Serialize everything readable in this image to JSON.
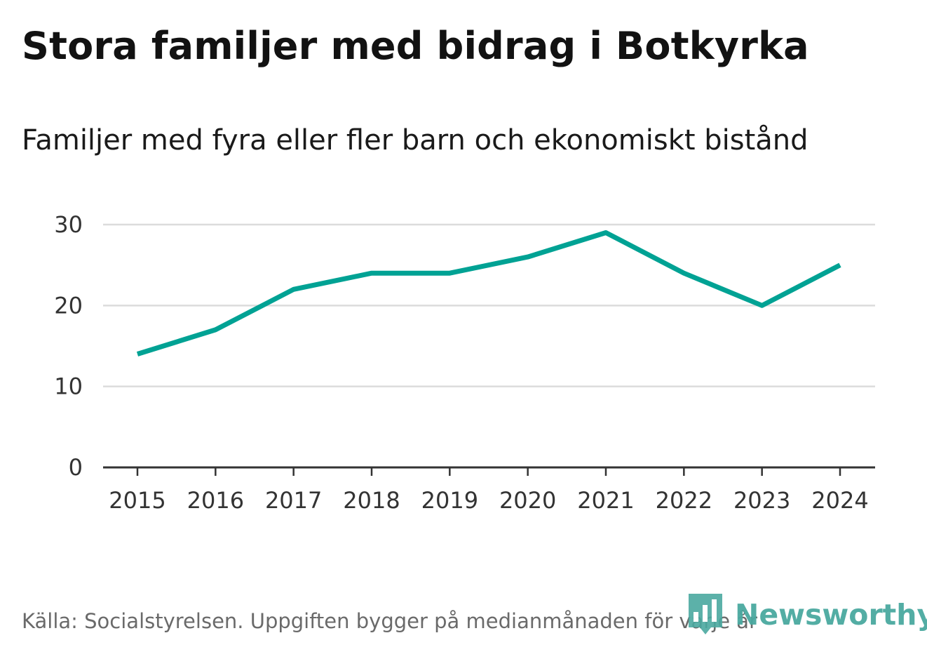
{
  "chart_data": {
    "type": "line",
    "title": "Stora familjer med bidrag i Botkyrka",
    "subtitle": "Familjer med fyra eller fler barn och ekonomiskt bistånd",
    "categories": [
      "2015",
      "2016",
      "2017",
      "2018",
      "2019",
      "2020",
      "2021",
      "2022",
      "2023",
      "2024"
    ],
    "series": [
      {
        "values": [
          14,
          17,
          22,
          24,
          24,
          26,
          29,
          24,
          20,
          25
        ]
      }
    ],
    "ylim": [
      0,
      30
    ],
    "yticks": [
      0,
      10,
      20,
      30
    ],
    "grid": true,
    "line_color": "#00a294",
    "xlabel": "",
    "ylabel": ""
  },
  "footer": {
    "source": "Källa: Socialstyrelsen. Uppgiften bygger på medianmånaden för varje år"
  },
  "brand": {
    "name": "Newsworthy",
    "logo_icon": "newsworthy-logo-icon",
    "color": "#4aa9a0"
  }
}
